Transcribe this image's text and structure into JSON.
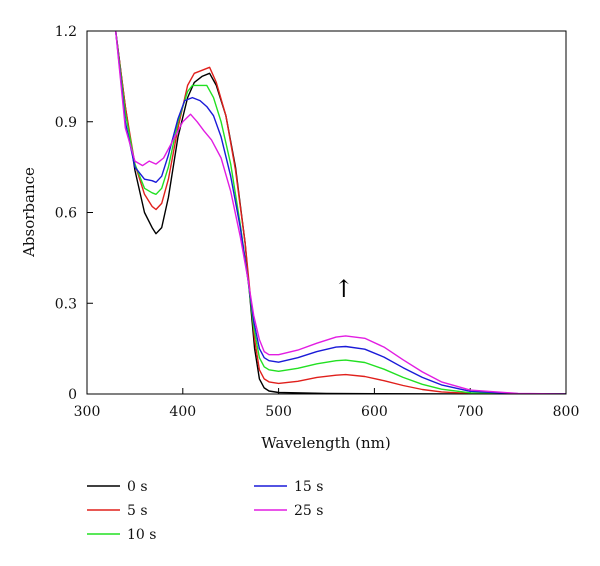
{
  "chart_data": {
    "type": "line",
    "xlabel": "Wavelength (nm)",
    "ylabel": "Absorbance",
    "xlim": [
      300,
      800
    ],
    "ylim": [
      0,
      1.2
    ],
    "x_ticks": [
      "300",
      "400",
      "500",
      "600",
      "700",
      "800"
    ],
    "y_ticks": [
      "0",
      "0.3",
      "0.6",
      "0.9",
      "1.2"
    ],
    "x_tick_values": [
      300,
      400,
      500,
      600,
      700,
      800
    ],
    "y_tick_values": [
      0,
      0.3,
      0.6,
      0.9,
      1.2
    ],
    "grid": false,
    "legend_position": "bottom",
    "annotation": "↑",
    "annotation_at": {
      "x": 568,
      "y": 0.32
    },
    "series": [
      {
        "name": "0 s",
        "color": "#000000",
        "points": [
          [
            320,
            1.25
          ],
          [
            330,
            1.2
          ],
          [
            340,
            0.95
          ],
          [
            350,
            0.74
          ],
          [
            360,
            0.6
          ],
          [
            368,
            0.55
          ],
          [
            372,
            0.53
          ],
          [
            378,
            0.55
          ],
          [
            385,
            0.65
          ],
          [
            395,
            0.85
          ],
          [
            405,
            0.98
          ],
          [
            412,
            1.03
          ],
          [
            420,
            1.05
          ],
          [
            428,
            1.06
          ],
          [
            435,
            1.02
          ],
          [
            445,
            0.92
          ],
          [
            455,
            0.75
          ],
          [
            465,
            0.5
          ],
          [
            470,
            0.32
          ],
          [
            475,
            0.15
          ],
          [
            480,
            0.05
          ],
          [
            485,
            0.02
          ],
          [
            490,
            0.01
          ],
          [
            500,
            0.005
          ],
          [
            550,
            0.002
          ],
          [
            600,
            0.001
          ],
          [
            700,
            0.0
          ],
          [
            800,
            0.0
          ]
        ]
      },
      {
        "name": "5 s",
        "color": "#e0201c",
        "points": [
          [
            320,
            1.25
          ],
          [
            330,
            1.2
          ],
          [
            340,
            0.95
          ],
          [
            350,
            0.76
          ],
          [
            360,
            0.66
          ],
          [
            368,
            0.62
          ],
          [
            372,
            0.61
          ],
          [
            378,
            0.63
          ],
          [
            385,
            0.71
          ],
          [
            395,
            0.88
          ],
          [
            405,
            1.02
          ],
          [
            412,
            1.06
          ],
          [
            420,
            1.07
          ],
          [
            428,
            1.08
          ],
          [
            435,
            1.03
          ],
          [
            445,
            0.92
          ],
          [
            455,
            0.74
          ],
          [
            465,
            0.5
          ],
          [
            470,
            0.34
          ],
          [
            475,
            0.18
          ],
          [
            480,
            0.08
          ],
          [
            485,
            0.05
          ],
          [
            490,
            0.04
          ],
          [
            500,
            0.035
          ],
          [
            520,
            0.042
          ],
          [
            540,
            0.055
          ],
          [
            560,
            0.062
          ],
          [
            570,
            0.064
          ],
          [
            590,
            0.058
          ],
          [
            610,
            0.044
          ],
          [
            630,
            0.028
          ],
          [
            650,
            0.015
          ],
          [
            670,
            0.007
          ],
          [
            700,
            0.002
          ],
          [
            750,
            0.0
          ],
          [
            800,
            0.0
          ]
        ]
      },
      {
        "name": "10 s",
        "color": "#22e022",
        "points": [
          [
            320,
            1.25
          ],
          [
            330,
            1.2
          ],
          [
            340,
            0.93
          ],
          [
            350,
            0.76
          ],
          [
            360,
            0.68
          ],
          [
            368,
            0.665
          ],
          [
            372,
            0.66
          ],
          [
            378,
            0.68
          ],
          [
            385,
            0.75
          ],
          [
            395,
            0.9
          ],
          [
            405,
            1.0
          ],
          [
            410,
            1.02
          ],
          [
            418,
            1.02
          ],
          [
            425,
            1.02
          ],
          [
            432,
            0.98
          ],
          [
            440,
            0.9
          ],
          [
            450,
            0.76
          ],
          [
            460,
            0.56
          ],
          [
            468,
            0.38
          ],
          [
            474,
            0.22
          ],
          [
            480,
            0.12
          ],
          [
            485,
            0.09
          ],
          [
            490,
            0.08
          ],
          [
            500,
            0.075
          ],
          [
            520,
            0.085
          ],
          [
            540,
            0.1
          ],
          [
            560,
            0.11
          ],
          [
            570,
            0.112
          ],
          [
            590,
            0.104
          ],
          [
            610,
            0.082
          ],
          [
            630,
            0.055
          ],
          [
            650,
            0.032
          ],
          [
            670,
            0.016
          ],
          [
            700,
            0.004
          ],
          [
            750,
            0.0
          ],
          [
            800,
            0.0
          ]
        ]
      },
      {
        "name": "15 s",
        "color": "#1a1ad8",
        "points": [
          [
            320,
            1.25
          ],
          [
            330,
            1.2
          ],
          [
            340,
            0.9
          ],
          [
            350,
            0.75
          ],
          [
            360,
            0.71
          ],
          [
            368,
            0.705
          ],
          [
            372,
            0.7
          ],
          [
            378,
            0.72
          ],
          [
            385,
            0.79
          ],
          [
            395,
            0.91
          ],
          [
            402,
            0.97
          ],
          [
            410,
            0.98
          ],
          [
            418,
            0.97
          ],
          [
            425,
            0.95
          ],
          [
            432,
            0.92
          ],
          [
            440,
            0.85
          ],
          [
            450,
            0.72
          ],
          [
            460,
            0.55
          ],
          [
            468,
            0.38
          ],
          [
            474,
            0.24
          ],
          [
            480,
            0.15
          ],
          [
            485,
            0.12
          ],
          [
            490,
            0.11
          ],
          [
            500,
            0.105
          ],
          [
            520,
            0.12
          ],
          [
            540,
            0.14
          ],
          [
            560,
            0.155
          ],
          [
            570,
            0.157
          ],
          [
            590,
            0.148
          ],
          [
            610,
            0.122
          ],
          [
            630,
            0.087
          ],
          [
            650,
            0.055
          ],
          [
            670,
            0.03
          ],
          [
            700,
            0.009
          ],
          [
            750,
            0.001
          ],
          [
            800,
            0.0
          ]
        ]
      },
      {
        "name": "25 s",
        "color": "#e21de2",
        "points": [
          [
            320,
            1.25
          ],
          [
            330,
            1.2
          ],
          [
            340,
            0.88
          ],
          [
            350,
            0.77
          ],
          [
            358,
            0.755
          ],
          [
            365,
            0.77
          ],
          [
            372,
            0.76
          ],
          [
            380,
            0.78
          ],
          [
            390,
            0.84
          ],
          [
            400,
            0.9
          ],
          [
            408,
            0.925
          ],
          [
            415,
            0.9
          ],
          [
            422,
            0.87
          ],
          [
            430,
            0.84
          ],
          [
            440,
            0.78
          ],
          [
            450,
            0.67
          ],
          [
            460,
            0.52
          ],
          [
            468,
            0.38
          ],
          [
            474,
            0.26
          ],
          [
            480,
            0.18
          ],
          [
            485,
            0.14
          ],
          [
            490,
            0.13
          ],
          [
            500,
            0.13
          ],
          [
            520,
            0.145
          ],
          [
            540,
            0.168
          ],
          [
            560,
            0.188
          ],
          [
            570,
            0.192
          ],
          [
            590,
            0.184
          ],
          [
            610,
            0.155
          ],
          [
            630,
            0.113
          ],
          [
            650,
            0.073
          ],
          [
            670,
            0.04
          ],
          [
            700,
            0.013
          ],
          [
            750,
            0.002
          ],
          [
            800,
            0.0
          ]
        ]
      }
    ]
  }
}
